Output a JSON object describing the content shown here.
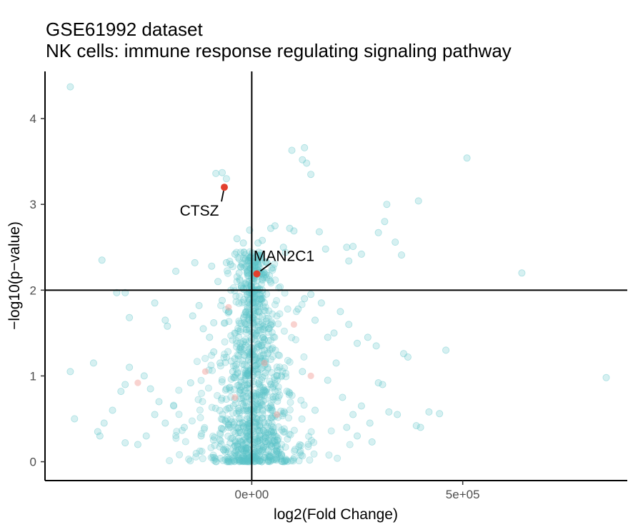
{
  "chart_data": {
    "type": "scatter",
    "title": "GSE61992 dataset",
    "subtitle": "NK cells: immune response regulating signaling pathway",
    "xlabel": "log2(Fold Change)",
    "ylabel": "−log10(p−value)",
    "xlim": [
      -490000,
      890000
    ],
    "ylim": [
      -0.22,
      4.55
    ],
    "x_ticks": [
      {
        "value": 0,
        "label": "0e+00"
      },
      {
        "value": 500000,
        "label": "5e+05"
      }
    ],
    "y_ticks": [
      {
        "value": 0,
        "label": "0"
      },
      {
        "value": 1,
        "label": "1"
      },
      {
        "value": 2,
        "label": "2"
      },
      {
        "value": 3,
        "label": "3"
      },
      {
        "value": 4,
        "label": "4"
      }
    ],
    "reference_lines": {
      "x": 0,
      "y": 2
    },
    "grid": false,
    "legend": "none",
    "colors": {
      "background_points": "#5bc4c8",
      "highlight_points": "#e2402e",
      "faint_highlight": "#f4a6a0"
    },
    "series": [
      {
        "role": "background",
        "points": [
          [
            -430000,
            4.37
          ],
          [
            -70000,
            3.37
          ],
          [
            -85000,
            3.36
          ],
          [
            -60000,
            3.3
          ],
          [
            95000,
            3.63
          ],
          [
            125000,
            3.66
          ],
          [
            120000,
            3.52
          ],
          [
            130000,
            3.48
          ],
          [
            140000,
            3.35
          ],
          [
            510000,
            3.54
          ],
          [
            395000,
            3.04
          ],
          [
            320000,
            3.0
          ],
          [
            315000,
            2.8
          ],
          [
            300000,
            2.67
          ],
          [
            340000,
            2.56
          ],
          [
            355000,
            2.41
          ],
          [
            240000,
            2.51
          ],
          [
            225000,
            2.5
          ],
          [
            260000,
            2.42
          ],
          [
            230000,
            2.34
          ],
          [
            640000,
            2.2
          ],
          [
            -355000,
            2.35
          ],
          [
            -180000,
            2.22
          ],
          [
            -135000,
            2.32
          ],
          [
            -95000,
            2.28
          ],
          [
            -60000,
            2.32
          ],
          [
            -50000,
            2.3
          ],
          [
            -30000,
            2.2
          ],
          [
            -80000,
            2.1
          ],
          [
            90000,
            2.72
          ],
          [
            100000,
            2.69
          ],
          [
            55000,
            2.75
          ],
          [
            45000,
            2.72
          ],
          [
            15000,
            2.55
          ],
          [
            25000,
            2.58
          ],
          [
            75000,
            2.5
          ],
          [
            80000,
            2.44
          ],
          [
            -5000,
            2.7
          ],
          [
            160000,
            2.68
          ],
          [
            175000,
            2.48
          ],
          [
            -320000,
            1.97
          ],
          [
            -300000,
            1.97
          ],
          [
            -230000,
            1.85
          ],
          [
            -200000,
            1.58
          ],
          [
            -205000,
            1.65
          ],
          [
            -140000,
            1.7
          ],
          [
            -125000,
            1.82
          ],
          [
            -115000,
            1.55
          ],
          [
            -100000,
            1.45
          ],
          [
            -90000,
            1.62
          ],
          [
            -70000,
            1.88
          ],
          [
            -55000,
            1.75
          ],
          [
            110000,
            1.78
          ],
          [
            125000,
            1.9
          ],
          [
            140000,
            1.95
          ],
          [
            150000,
            1.65
          ],
          [
            165000,
            1.85
          ],
          [
            180000,
            1.45
          ],
          [
            195000,
            1.5
          ],
          [
            210000,
            1.75
          ],
          [
            230000,
            1.6
          ],
          [
            250000,
            1.38
          ],
          [
            275000,
            1.45
          ],
          [
            295000,
            1.35
          ],
          [
            -290000,
            1.68
          ],
          [
            460000,
            1.3
          ],
          [
            360000,
            1.26
          ],
          [
            370000,
            1.22
          ],
          [
            -430000,
            1.05
          ],
          [
            -375000,
            1.15
          ],
          [
            -290000,
            1.1
          ],
          [
            -255000,
            1.0
          ],
          [
            -240000,
            0.85
          ],
          [
            -220000,
            0.7
          ],
          [
            -310000,
            0.82
          ],
          [
            -300000,
            0.9
          ],
          [
            -330000,
            0.6
          ],
          [
            -350000,
            0.45
          ],
          [
            -365000,
            0.35
          ],
          [
            -360000,
            0.3
          ],
          [
            -270000,
            0.2
          ],
          [
            -250000,
            0.3
          ],
          [
            -230000,
            0.55
          ],
          [
            -205000,
            0.45
          ],
          [
            -185000,
            0.65
          ],
          [
            -160000,
            0.4
          ],
          [
            -145000,
            0.92
          ],
          [
            -120000,
            0.3
          ],
          [
            -90000,
            1.28
          ],
          [
            -75000,
            1.15
          ],
          [
            -60000,
            0.85
          ],
          [
            -40000,
            1.2
          ],
          [
            -30000,
            0.5
          ],
          [
            -20000,
            1.4
          ],
          [
            30000,
            1.3
          ],
          [
            60000,
            1.0
          ],
          [
            90000,
            0.8
          ],
          [
            120000,
            1.05
          ],
          [
            150000,
            0.6
          ],
          [
            180000,
            0.95
          ],
          [
            200000,
            1.15
          ],
          [
            215000,
            0.75
          ],
          [
            240000,
            0.55
          ],
          [
            260000,
            0.65
          ],
          [
            280000,
            0.45
          ],
          [
            300000,
            0.92
          ],
          [
            310000,
            0.9
          ],
          [
            325000,
            0.58
          ],
          [
            345000,
            0.55
          ],
          [
            390000,
            0.42
          ],
          [
            400000,
            0.4
          ],
          [
            420000,
            0.58
          ],
          [
            445000,
            0.56
          ],
          [
            285000,
            0.23
          ],
          [
            250000,
            0.3
          ],
          [
            225000,
            0.4
          ],
          [
            840000,
            0.98
          ],
          [
            -420000,
            0.5
          ],
          [
            -300000,
            0.22
          ],
          [
            -10000,
            0.35
          ],
          [
            10000,
            0.8
          ],
          [
            -15000,
            1.6
          ],
          [
            15000,
            1.75
          ],
          [
            -40000,
            2.42
          ],
          [
            -35000,
            2.6
          ],
          [
            -20000,
            2.55
          ],
          [
            20000,
            2.4
          ],
          [
            -25000,
            2.05
          ],
          [
            25000,
            2.0
          ],
          [
            40000,
            1.55
          ],
          [
            -45000,
            1.05
          ],
          [
            45000,
            0.65
          ],
          [
            -55000,
            0.4
          ],
          [
            55000,
            0.3
          ],
          [
            -8000,
            0.1
          ],
          [
            8000,
            0.05
          ],
          [
            -30000,
            0.02
          ],
          [
            30000,
            0.05
          ]
        ]
      },
      {
        "role": "highlighted",
        "points": [
          {
            "label": "CTSZ",
            "x": -65000,
            "y": 3.2
          },
          {
            "label": "MAN2C1",
            "x": 12000,
            "y": 2.19
          }
        ]
      },
      {
        "role": "faint_highlighted",
        "points": [
          [
            -270000,
            0.92
          ],
          [
            -110000,
            1.05
          ],
          [
            -55000,
            1.8
          ],
          [
            100000,
            1.6
          ],
          [
            140000,
            1.0
          ],
          [
            60000,
            0.55
          ],
          [
            -40000,
            0.75
          ],
          [
            30000,
            1.15
          ]
        ]
      }
    ]
  }
}
